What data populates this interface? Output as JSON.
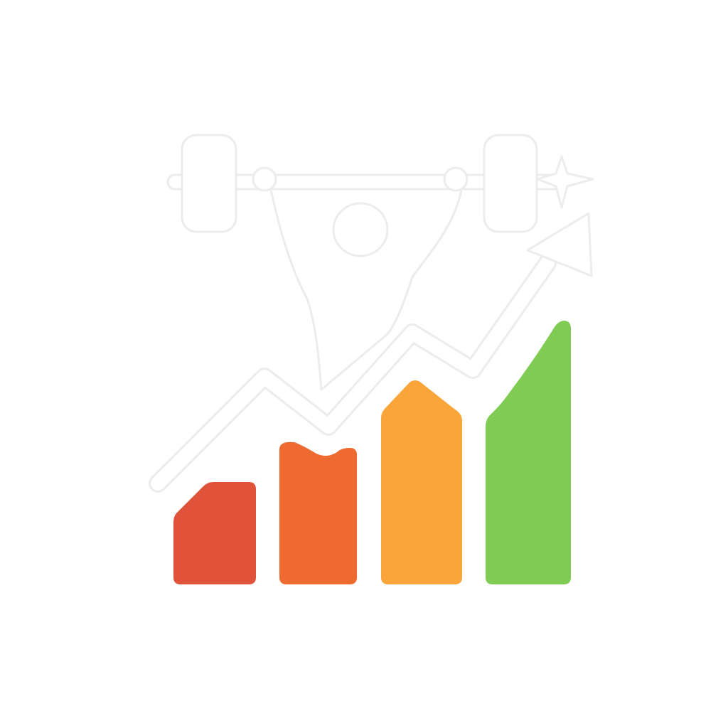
{
  "icon": {
    "name": "weightlifter-progress-chart-icon",
    "background": "#ffffff",
    "outline_color": "#ececec",
    "bars": [
      {
        "name": "bar-1",
        "level": 0.39,
        "color": "#e0533a"
      },
      {
        "name": "bar-2",
        "level": 0.53,
        "color": "#ee6a31"
      },
      {
        "name": "bar-3",
        "level": 0.77,
        "color": "#f9a53a"
      },
      {
        "name": "bar-4",
        "level": 1.0,
        "color": "#80cb53"
      }
    ]
  }
}
